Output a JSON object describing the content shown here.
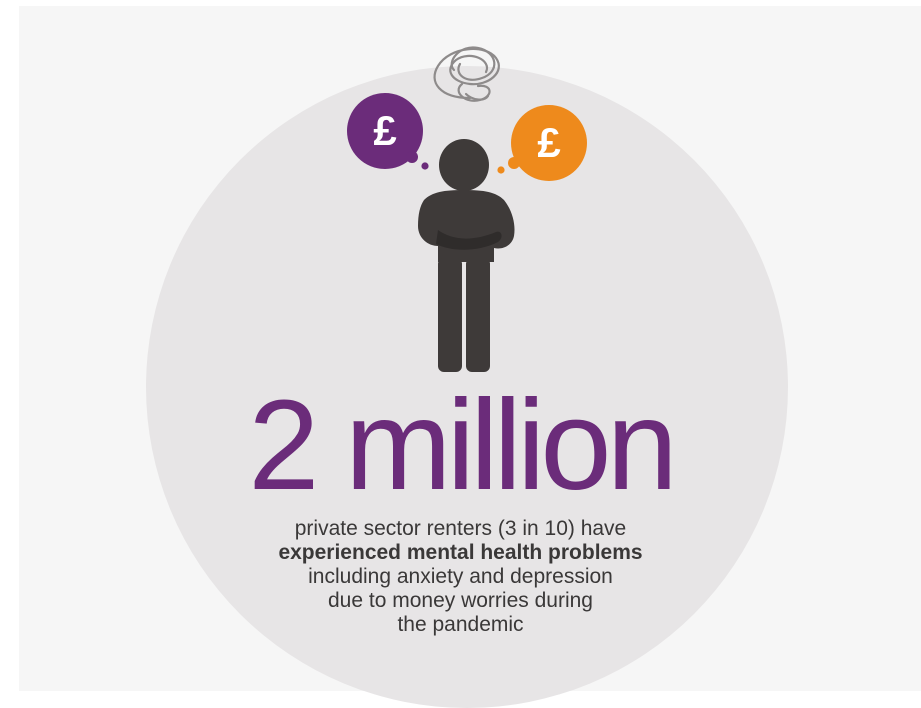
{
  "headline": "2 million",
  "caption": {
    "line1": "private sector renters (3 in 10) have",
    "line2_bold": "experienced mental health problems",
    "line3": "including anxiety and depression",
    "line4": "due to money worries during",
    "line5": "the pandemic"
  },
  "icons": {
    "left_bubble_symbol": "£",
    "right_bubble_symbol": "£"
  },
  "colors": {
    "purple": "#6b2c7a",
    "orange": "#ee8a1c",
    "figure": "#3e3a39",
    "circle": "#e7e5e6",
    "panel": "#f6f6f6"
  }
}
